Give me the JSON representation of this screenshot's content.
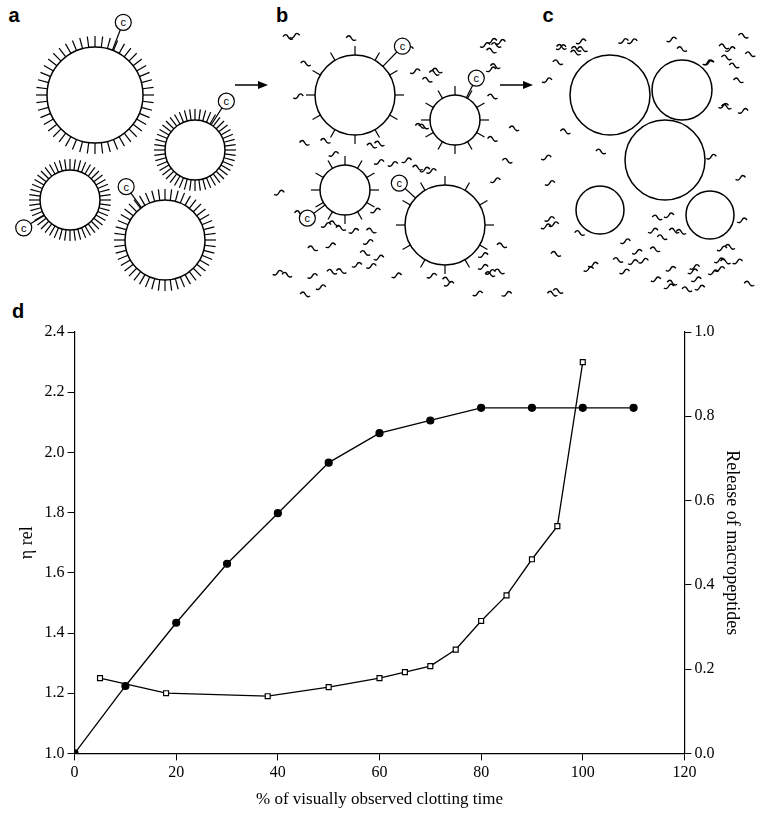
{
  "diagram": {
    "panels": [
      {
        "label": "a",
        "enzyme_label": "c"
      },
      {
        "label": "b",
        "enzyme_label": "c"
      },
      {
        "label": "c"
      }
    ]
  },
  "chart_data": {
    "panel_label": "d",
    "type": "line",
    "x_label": "% of visually observed clotting time",
    "y_label": "η rel",
    "y2_label": "Release of macropeptides",
    "xlim": [
      0,
      120
    ],
    "xticks": [
      0,
      20,
      40,
      60,
      80,
      100,
      120
    ],
    "ylim": [
      1.0,
      2.4
    ],
    "yticks": [
      {
        "value": 1.0,
        "label": "1.0"
      },
      {
        "value": 1.2,
        "label": "1.2"
      },
      {
        "value": 1.4,
        "label": "1.4"
      },
      {
        "value": 1.6,
        "label": "1.6"
      },
      {
        "value": 1.8,
        "label": "1.8"
      },
      {
        "value": 2.0,
        "label": "2.0"
      },
      {
        "value": 2.2,
        "label": "2.2"
      },
      {
        "value": 2.4,
        "label": "2.4"
      }
    ],
    "y2lim": [
      0.0,
      1.0
    ],
    "y2ticks": [
      {
        "value": 0.0,
        "label": "0.0"
      },
      {
        "value": 0.2,
        "label": "0.2"
      },
      {
        "value": 0.4,
        "label": "0.4"
      },
      {
        "value": 0.6,
        "label": "0.6"
      },
      {
        "value": 0.8,
        "label": "0.8"
      },
      {
        "value": 1.0,
        "label": "1.0"
      }
    ],
    "grid": false,
    "series": [
      {
        "color": "#000000",
        "marker": "circle",
        "line_style": "solid",
        "axis": "y2",
        "x": [
          0,
          10,
          20,
          30,
          40,
          50,
          60,
          70,
          80,
          90,
          100,
          110
        ],
        "values": [
          0.0,
          0.16,
          0.31,
          0.45,
          0.57,
          0.69,
          0.76,
          0.79,
          0.82,
          0.82,
          0.82,
          0.82
        ]
      },
      {
        "color": "#000000",
        "marker": "square",
        "line_style": "solid",
        "x": [
          5,
          18,
          38,
          50,
          60,
          65,
          70,
          75,
          80,
          85,
          90,
          95,
          100
        ],
        "values": [
          1.25,
          1.2,
          1.19,
          1.22,
          1.25,
          1.27,
          1.29,
          1.345,
          1.44,
          1.525,
          1.645,
          1.755,
          2.3
        ]
      }
    ]
  }
}
